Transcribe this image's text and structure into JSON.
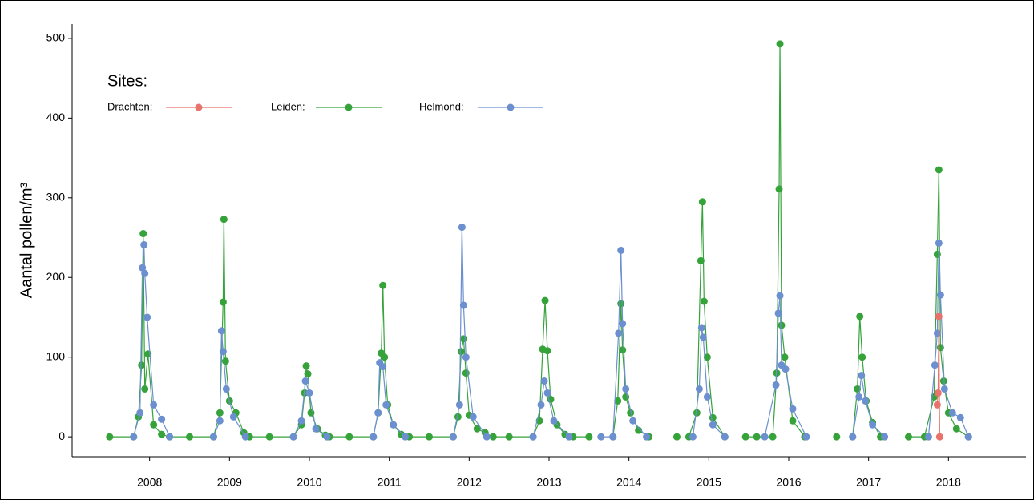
{
  "chart_data": {
    "type": "line",
    "y_label": "Aantal pollen/m³",
    "legend_title": "Sites:",
    "legend_position": "top-left",
    "xlim": [
      2007.53,
      2019.47
    ],
    "ylim": [
      -25,
      518
    ],
    "xticks": [
      {
        "value": 2008.5,
        "label": "2008"
      },
      {
        "value": 2009.5,
        "label": "2009"
      },
      {
        "value": 2010.5,
        "label": "2010"
      },
      {
        "value": 2011.5,
        "label": "2011"
      },
      {
        "value": 2012.5,
        "label": "2012"
      },
      {
        "value": 2013.5,
        "label": "2013"
      },
      {
        "value": 2014.5,
        "label": "2014"
      },
      {
        "value": 2015.5,
        "label": "2015"
      },
      {
        "value": 2016.5,
        "label": "2016"
      },
      {
        "value": 2017.5,
        "label": "2017"
      },
      {
        "value": 2018.5,
        "label": "2018"
      }
    ],
    "yticks": [
      0,
      100,
      200,
      300,
      400,
      500
    ],
    "series": [
      {
        "name": "Drachten:",
        "color": "#e8736c",
        "x": [
          2018.36,
          2018.37,
          2018.38,
          2018.39
        ],
        "values": [
          40,
          55,
          151,
          0
        ]
      },
      {
        "name": "Leiden:",
        "color": "#35a33a",
        "x": [
          2008.0,
          2008.3,
          2008.36,
          2008.4,
          2008.42,
          2008.44,
          2008.48,
          2008.55,
          2008.65,
          2008.75,
          2009.0,
          2009.3,
          2009.38,
          2009.42,
          2009.43,
          2009.45,
          2009.5,
          2009.58,
          2009.68,
          2009.75,
          2010.0,
          2010.3,
          2010.4,
          2010.44,
          2010.46,
          2010.48,
          2010.52,
          2010.6,
          2010.7,
          2010.75,
          2011.0,
          2011.3,
          2011.36,
          2011.4,
          2011.42,
          2011.44,
          2011.48,
          2011.55,
          2011.65,
          2011.75,
          2012.0,
          2012.3,
          2012.36,
          2012.4,
          2012.43,
          2012.46,
          2012.5,
          2012.6,
          2012.7,
          2012.8,
          2013.0,
          2013.3,
          2013.38,
          2013.42,
          2013.45,
          2013.48,
          2013.52,
          2013.6,
          2013.7,
          2013.8,
          2014.0,
          null,
          2014.3,
          2014.36,
          2014.4,
          2014.42,
          2014.46,
          2014.52,
          2014.62,
          2014.75,
          null,
          2015.1,
          null,
          2015.25,
          2015.35,
          2015.4,
          2015.42,
          2015.44,
          2015.48,
          2015.55,
          2015.7,
          null,
          2015.96,
          2016.1,
          2016.3,
          2016.35,
          2016.38,
          2016.39,
          2016.41,
          2016.45,
          2016.55,
          2016.7,
          null,
          2017.1,
          null,
          2017.3,
          2017.36,
          2017.39,
          2017.42,
          2017.47,
          2017.55,
          2017.65,
          null,
          2018.0,
          2018.2,
          2018.32,
          2018.36,
          2018.38,
          2018.4,
          2018.44,
          2018.5,
          2018.6,
          2018.75
        ],
        "values": [
          0,
          0,
          25,
          90,
          255,
          60,
          104,
          15,
          3,
          0,
          0,
          0,
          30,
          169,
          273,
          95,
          45,
          30,
          5,
          0,
          0,
          0,
          15,
          55,
          89,
          79,
          30,
          10,
          2,
          0,
          0,
          0,
          30,
          105,
          190,
          100,
          40,
          15,
          3,
          0,
          0,
          0,
          25,
          107,
          123,
          80,
          27,
          10,
          5,
          0,
          0,
          0,
          20,
          110,
          171,
          108,
          47,
          15,
          3,
          0,
          0,
          null,
          0,
          45,
          167,
          109,
          50,
          30,
          8,
          0,
          null,
          0,
          null,
          0,
          30,
          221,
          295,
          170,
          100,
          24,
          0,
          null,
          0,
          0,
          0,
          80,
          311,
          493,
          140,
          100,
          20,
          0,
          null,
          0,
          null,
          0,
          60,
          151,
          100,
          45,
          18,
          0,
          null,
          0,
          0,
          50,
          229,
          335,
          112,
          70,
          30,
          10,
          0
        ]
      },
      {
        "name": "Helmond:",
        "color": "#6b8fcf",
        "x": [
          2008.3,
          2008.38,
          2008.41,
          2008.43,
          2008.44,
          2008.47,
          2008.55,
          2008.65,
          2008.75,
          null,
          2009.3,
          2009.38,
          2009.4,
          2009.42,
          2009.46,
          2009.55,
          2009.7,
          null,
          2010.3,
          2010.4,
          2010.45,
          2010.5,
          2010.58,
          2010.72,
          null,
          2011.3,
          2011.36,
          2011.38,
          2011.42,
          2011.46,
          2011.55,
          2011.7,
          null,
          2012.3,
          2012.38,
          2012.41,
          2012.43,
          2012.46,
          2012.55,
          2012.72,
          null,
          2013.3,
          2013.4,
          2013.44,
          2013.48,
          2013.56,
          2013.75,
          null,
          2014.15,
          2014.3,
          2014.37,
          2014.4,
          2014.42,
          2014.46,
          2014.55,
          2014.72,
          null,
          2015.3,
          2015.38,
          2015.41,
          2015.43,
          2015.48,
          2015.55,
          2015.7,
          null,
          2016.2,
          2016.34,
          2016.37,
          2016.39,
          2016.41,
          2016.46,
          2016.55,
          2016.72,
          null,
          2017.3,
          2017.38,
          2017.41,
          2017.46,
          2017.55,
          2017.7,
          null,
          2018.25,
          2018.33,
          2018.36,
          2018.38,
          2018.4,
          2018.45,
          2018.55,
          2018.65,
          2018.75
        ],
        "values": [
          0,
          30,
          212,
          241,
          205,
          150,
          40,
          22,
          0,
          null,
          0,
          20,
          133,
          107,
          60,
          25,
          0,
          null,
          0,
          20,
          70,
          55,
          10,
          0,
          null,
          0,
          30,
          93,
          88,
          40,
          15,
          0,
          null,
          0,
          40,
          263,
          165,
          100,
          25,
          0,
          null,
          0,
          40,
          70,
          55,
          20,
          0,
          null,
          0,
          0,
          130,
          234,
          142,
          60,
          20,
          0,
          null,
          0,
          60,
          137,
          125,
          50,
          15,
          0,
          null,
          0,
          65,
          155,
          177,
          90,
          85,
          35,
          0,
          null,
          0,
          50,
          77,
          45,
          15,
          0,
          null,
          0,
          90,
          130,
          243,
          178,
          60,
          30,
          24,
          0
        ]
      }
    ]
  }
}
